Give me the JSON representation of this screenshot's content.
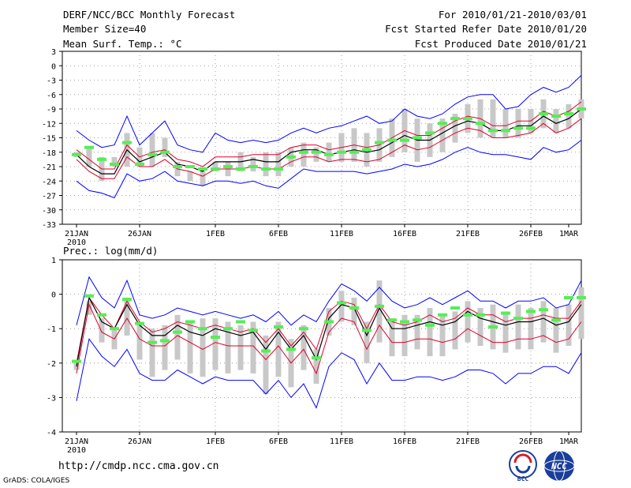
{
  "header": {
    "title": "DERF/NCC/BCC Monthly Forecast",
    "member_size": "Member Size=40",
    "variable": "Mean Surf. Temp.: °C",
    "period": "For 2010/01/21-2010/03/01",
    "start_date": "Fcst Started Refer Date 2010/01/20",
    "produced_date": "Fcst Produced Date 2010/01/21"
  },
  "footer": {
    "url": "http://cmdp.ncc.cma.gov.cn",
    "grads": "GrADS: COLA/IGES"
  },
  "logos": {
    "bcc": "BCC",
    "ncc": "NCC"
  },
  "colors": {
    "mean": "#000000",
    "spread": "#e0002a",
    "extreme": "#0000ff",
    "box": "#c8c8c8",
    "obs": "#55ee55",
    "grid": "#888888"
  },
  "chart_data": [
    {
      "type": "line",
      "title": "Mean Surf. Temp.: °C",
      "ylim": [
        -33,
        3
      ],
      "yticks": [
        3,
        0,
        -3,
        -6,
        -9,
        -12,
        -15,
        -18,
        -21,
        -24,
        -27,
        -30,
        -33
      ],
      "xticks": [
        {
          "day": 0,
          "label": "21JAN"
        },
        {
          "day": 5,
          "label": "26JAN"
        },
        {
          "day": 11,
          "label": "1FEB"
        },
        {
          "day": 16,
          "label": "6FEB"
        },
        {
          "day": 21,
          "label": "11FEB"
        },
        {
          "day": 26,
          "label": "16FEB"
        },
        {
          "day": 31,
          "label": "21FEB"
        },
        {
          "day": 36,
          "label": "26FEB"
        },
        {
          "day": 39,
          "label": "1MAR"
        }
      ],
      "year_label": "2010",
      "series": [
        {
          "name": "max",
          "values": [
            -13.5,
            -15.5,
            -17,
            -16.5,
            -10.5,
            -16.5,
            -14,
            -11.5,
            -16.5,
            -17.5,
            -18,
            -14,
            -15.5,
            -16,
            -15.5,
            -16,
            -15.5,
            -14,
            -13,
            -14,
            -13,
            -12.5,
            -11.5,
            -10.5,
            -12,
            -11.5,
            -9,
            -10.5,
            -11,
            -10,
            -8,
            -6.5,
            -6,
            -6,
            -9,
            -8.5,
            -6,
            -4.5,
            -5.5,
            -4.5,
            -2
          ]
        },
        {
          "name": "spread_upper",
          "values": [
            -17.5,
            -19.5,
            -21.5,
            -21.5,
            -16.5,
            -19,
            -18,
            -17.5,
            -19.5,
            -20,
            -21,
            -19,
            -19,
            -19,
            -18.5,
            -18.5,
            -18.5,
            -17,
            -16.5,
            -16.5,
            -17.5,
            -17,
            -16.5,
            -17,
            -16.5,
            -15,
            -13.5,
            -14.5,
            -14.5,
            -13,
            -11.5,
            -10.5,
            -11,
            -12.5,
            -12.5,
            -11.5,
            -11.5,
            -9.5,
            -10.5,
            -9.5,
            -7.5
          ]
        },
        {
          "name": "mean",
          "values": [
            -18.5,
            -21,
            -22.5,
            -22.5,
            -17.5,
            -20,
            -19,
            -18,
            -20.5,
            -21,
            -22,
            -20,
            -20,
            -20,
            -19.5,
            -20,
            -20,
            -18,
            -17.5,
            -17.5,
            -18.5,
            -18,
            -17.5,
            -18,
            -17.5,
            -16,
            -14.5,
            -15.5,
            -15.5,
            -14,
            -12.5,
            -11.5,
            -12,
            -13.5,
            -13.5,
            -12.5,
            -12.5,
            -10.5,
            -12,
            -11,
            -9
          ]
        },
        {
          "name": "spread_lower",
          "values": [
            -19.5,
            -22,
            -23.5,
            -23.5,
            -19,
            -21,
            -21,
            -19.5,
            -21.5,
            -22,
            -23,
            -21.5,
            -21.5,
            -21.5,
            -21,
            -21.5,
            -21.5,
            -20,
            -19,
            -19,
            -20,
            -19.5,
            -19.5,
            -20,
            -19.5,
            -18,
            -16.5,
            -17.5,
            -17,
            -15.5,
            -14,
            -13,
            -13.5,
            -15,
            -15,
            -14.5,
            -14,
            -12,
            -14,
            -13,
            -11
          ]
        },
        {
          "name": "min",
          "values": [
            -24,
            -26,
            -26.5,
            -27.5,
            -22.5,
            -24,
            -23.5,
            -22,
            -24,
            -24.5,
            -25,
            -24,
            -24,
            -24.5,
            -24,
            -25,
            -25.5,
            -23.5,
            -21.5,
            -22,
            -22,
            -22,
            -22,
            -22.5,
            -22,
            -21.5,
            -20.5,
            -21,
            -20.5,
            -19.5,
            -18,
            -17,
            -18,
            -18.5,
            -18.5,
            -19,
            -19.5,
            -17,
            -18,
            -17.5,
            -15.5
          ]
        },
        {
          "name": "box_top",
          "values": [
            -18,
            -17,
            -19,
            -19,
            -14,
            -17,
            -14,
            -15,
            -20,
            -22,
            -22,
            -20,
            -20,
            -18,
            -19,
            -18,
            -18,
            -17,
            -16,
            -17,
            -16,
            -14,
            -13,
            -14,
            -13,
            -11,
            -9,
            -11,
            -12,
            -11,
            -10,
            -8,
            -7,
            -7,
            -9,
            -9,
            -9,
            -7,
            -9,
            -8,
            -7
          ]
        },
        {
          "name": "box_bottom",
          "values": [
            -19,
            -21,
            -24,
            -21,
            -21,
            -21,
            -21,
            -19,
            -23,
            -24,
            -25,
            -22,
            -23,
            -22,
            -22,
            -23,
            -23,
            -21,
            -21,
            -20,
            -20,
            -20,
            -20,
            -21,
            -20,
            -19,
            -18,
            -20,
            -19,
            -18,
            -16,
            -14,
            -15,
            -15,
            -15,
            -15,
            -14,
            -13,
            -14,
            -13,
            -11
          ]
        },
        {
          "name": "observed",
          "values": [
            -18.5,
            -17,
            -19.5,
            -20.5,
            -16,
            -20.5,
            -18.5,
            -18,
            -21,
            -21,
            -21.5,
            -21.5,
            -21,
            -21.5,
            -21,
            -21.5,
            -21.5,
            -19,
            -18,
            -18,
            -18.5,
            -18,
            -18,
            -17.5,
            -16,
            -15.5,
            -15.5,
            -15,
            -14,
            -12,
            -11,
            -11,
            -12,
            -13.5,
            -13.5,
            -13,
            -13,
            -10,
            -10.5,
            -10,
            -9
          ]
        }
      ]
    },
    {
      "type": "line",
      "title": "Prec.: log(mm/d)",
      "ylim": [
        -4,
        1
      ],
      "yticks": [
        1,
        0,
        -1,
        -2,
        -3,
        -4
      ],
      "xticks": [
        {
          "day": 0,
          "label": "21JAN"
        },
        {
          "day": 5,
          "label": "26JAN"
        },
        {
          "day": 11,
          "label": "1FEB"
        },
        {
          "day": 16,
          "label": "6FEB"
        },
        {
          "day": 21,
          "label": "11FEB"
        },
        {
          "day": 26,
          "label": "16FEB"
        },
        {
          "day": 31,
          "label": "21FEB"
        },
        {
          "day": 36,
          "label": "26FEB"
        },
        {
          "day": 39,
          "label": "1MAR"
        }
      ],
      "year_label": "2010",
      "series": [
        {
          "name": "max",
          "values": [
            -0.9,
            0.5,
            -0.1,
            -0.4,
            0.4,
            -0.6,
            -0.7,
            -0.6,
            -0.4,
            -0.5,
            -0.6,
            -0.5,
            -0.6,
            -0.7,
            -0.6,
            -0.8,
            -0.5,
            -0.9,
            -0.6,
            -0.8,
            -0.2,
            0.3,
            0.1,
            -0.2,
            0.2,
            -0.2,
            -0.4,
            -0.3,
            -0.1,
            -0.3,
            -0.1,
            0.1,
            -0.2,
            -0.2,
            -0.4,
            -0.2,
            -0.2,
            -0.1,
            -0.4,
            -0.3,
            0.4
          ]
        },
        {
          "name": "spread_upper",
          "values": [
            -2.0,
            -0.1,
            -0.6,
            -1.0,
            -0.2,
            -0.8,
            -1.1,
            -1.0,
            -0.8,
            -0.9,
            -1.0,
            -0.9,
            -1.0,
            -1.1,
            -1.0,
            -1.4,
            -1.0,
            -1.5,
            -1.1,
            -1.6,
            -0.5,
            -0.2,
            -0.3,
            -1.0,
            -0.3,
            -0.8,
            -0.9,
            -0.8,
            -0.6,
            -0.8,
            -0.7,
            -0.4,
            -0.6,
            -0.6,
            -0.8,
            -0.7,
            -0.7,
            -0.6,
            -0.7,
            -0.7,
            -0.2
          ]
        },
        {
          "name": "mean",
          "values": [
            -2.1,
            -0.1,
            -0.8,
            -1.0,
            -0.3,
            -0.9,
            -1.2,
            -1.2,
            -0.9,
            -1.1,
            -1.2,
            -1.0,
            -1.1,
            -1.2,
            -1.1,
            -1.6,
            -1.1,
            -1.6,
            -1.2,
            -1.9,
            -0.7,
            -0.3,
            -0.4,
            -1.2,
            -0.4,
            -1.0,
            -1.0,
            -0.9,
            -0.8,
            -0.9,
            -0.8,
            -0.5,
            -0.7,
            -0.8,
            -0.9,
            -0.8,
            -0.8,
            -0.7,
            -0.9,
            -0.8,
            -0.3
          ]
        },
        {
          "name": "spread_lower",
          "values": [
            -2.3,
            -0.3,
            -1.1,
            -1.3,
            -0.7,
            -1.3,
            -1.5,
            -1.5,
            -1.2,
            -1.4,
            -1.6,
            -1.4,
            -1.5,
            -1.5,
            -1.5,
            -1.9,
            -1.5,
            -2.0,
            -1.6,
            -2.3,
            -1.1,
            -0.7,
            -0.8,
            -1.6,
            -0.9,
            -1.4,
            -1.4,
            -1.3,
            -1.3,
            -1.4,
            -1.3,
            -1.0,
            -1.2,
            -1.4,
            -1.4,
            -1.3,
            -1.3,
            -1.2,
            -1.4,
            -1.3,
            -0.8
          ]
        },
        {
          "name": "min",
          "values": [
            -3.1,
            -1.3,
            -1.8,
            -2.1,
            -1.6,
            -2.3,
            -2.5,
            -2.5,
            -2.2,
            -2.4,
            -2.6,
            -2.4,
            -2.5,
            -2.5,
            -2.5,
            -2.9,
            -2.5,
            -3.0,
            -2.6,
            -3.3,
            -2.1,
            -1.7,
            -1.9,
            -2.6,
            -2.0,
            -2.5,
            -2.5,
            -2.4,
            -2.4,
            -2.5,
            -2.4,
            -2.2,
            -2.2,
            -2.3,
            -2.6,
            -2.3,
            -2.3,
            -2.1,
            -2.1,
            -2.3,
            -1.7
          ]
        },
        {
          "name": "box_top",
          "values": [
            -2.0,
            -0.2,
            -0.7,
            -1.0,
            -0.1,
            -0.8,
            -1.0,
            -0.9,
            -0.6,
            -0.8,
            -0.7,
            -0.7,
            -0.8,
            -0.9,
            -0.8,
            -1.2,
            -0.8,
            -1.3,
            -0.9,
            -1.6,
            -0.4,
            0.1,
            -0.1,
            -0.8,
            0.4,
            -0.7,
            -0.6,
            -0.6,
            -0.4,
            -0.6,
            -0.5,
            -0.2,
            -0.4,
            -0.3,
            -0.5,
            -0.3,
            -0.4,
            -0.2,
            -0.4,
            -0.3,
            0.2
          ]
        },
        {
          "name": "box_bottom",
          "values": [
            -2.2,
            -0.6,
            -1.4,
            -1.6,
            -1.2,
            -1.9,
            -2.4,
            -2.2,
            -1.9,
            -2.3,
            -2.4,
            -2.2,
            -2.3,
            -2.2,
            -2.3,
            -2.9,
            -2.4,
            -2.7,
            -2.2,
            -2.6,
            -1.2,
            -0.8,
            -0.9,
            -2.0,
            -1.4,
            -1.8,
            -1.8,
            -1.6,
            -1.8,
            -1.8,
            -1.6,
            -1.4,
            -1.5,
            -1.6,
            -1.7,
            -1.6,
            -1.6,
            -1.4,
            -1.7,
            -1.5,
            -1.3
          ]
        },
        {
          "name": "observed",
          "values": [
            -1.95,
            -0.05,
            -0.6,
            -1.0,
            -0.15,
            -0.85,
            -1.4,
            -1.35,
            -1.1,
            -0.8,
            -1.0,
            -1.25,
            -1.0,
            -0.8,
            -1.05,
            -1.65,
            -0.95,
            -1.6,
            -1.0,
            -1.85,
            -0.8,
            -0.25,
            -0.4,
            -1.05,
            -0.35,
            -0.75,
            -0.8,
            -0.75,
            -0.9,
            -0.6,
            -0.4,
            -0.6,
            -0.6,
            -0.95,
            -0.55,
            -0.7,
            -0.5,
            -0.45,
            -0.75,
            -0.1,
            -0.1
          ]
        }
      ]
    }
  ]
}
